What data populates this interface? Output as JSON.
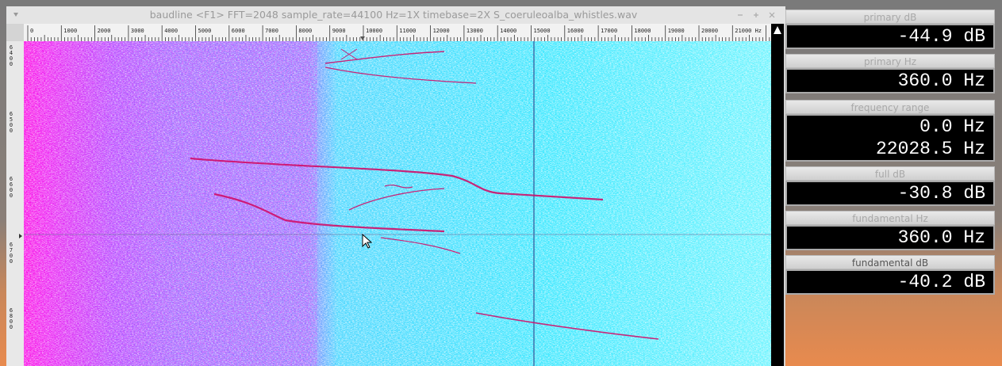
{
  "window": {
    "title": "baudline  <F1> FFT=2048 sample_rate=44100 Hz=1X timebase=2X  S_coeruleoalba_whistles.wav"
  },
  "freq_ruler": {
    "labels": [
      "0",
      "1000",
      "2000",
      "3000",
      "4000",
      "5000",
      "6000",
      "7000",
      "8000",
      "9000",
      "10000",
      "11000",
      "12000",
      "13000",
      "14000",
      "15000",
      "16000",
      "17000",
      "18000",
      "19000",
      "20000",
      "21000 Hz"
    ]
  },
  "time_ruler": {
    "labels": [
      "6400",
      "6500",
      "6600",
      "6700",
      "6800"
    ]
  },
  "panels": [
    {
      "title": "primary dB",
      "values": [
        "-44.9 dB"
      ]
    },
    {
      "title": "primary Hz",
      "values": [
        "360.0 Hz"
      ]
    },
    {
      "title": "frequency range",
      "values": [
        "0.0 Hz",
        "22028.5 Hz"
      ]
    },
    {
      "title": "full dB",
      "values": [
        "-30.8 dB"
      ]
    },
    {
      "title": "fundamental Hz",
      "values": [
        "360.0 Hz"
      ]
    },
    {
      "title": "fundamental dB",
      "values": [
        "-40.2 dB"
      ]
    }
  ]
}
